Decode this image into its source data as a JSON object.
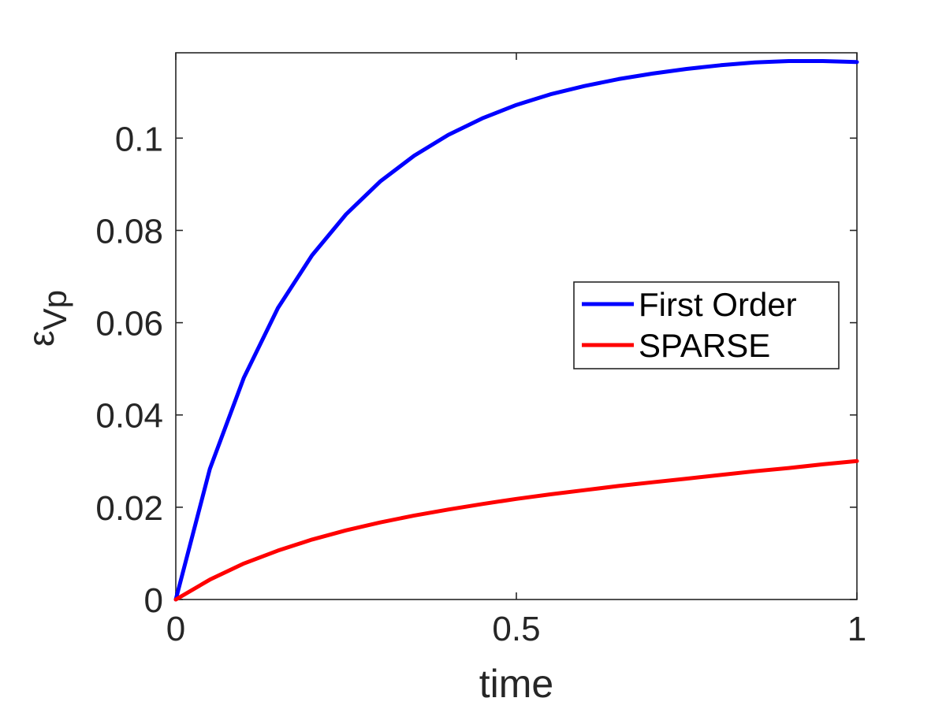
{
  "chart_data": {
    "type": "line",
    "xlabel": "time",
    "ylabel_main": "ε",
    "ylabel_sub": "Vp",
    "xlim": [
      0,
      1
    ],
    "ylim": [
      0,
      0.1185
    ],
    "x_ticks": [
      0,
      0.5,
      1
    ],
    "x_tick_labels": [
      "0",
      "0.5",
      "1"
    ],
    "y_ticks": [
      0,
      0.02,
      0.04,
      0.06,
      0.08,
      0.1
    ],
    "y_tick_labels": [
      "0",
      "0.02",
      "0.04",
      "0.06",
      "0.08",
      "0.1"
    ],
    "grid": false,
    "legend_position": "right",
    "series": [
      {
        "name": "First Order",
        "color": "#0000ff",
        "x": [
          0,
          0.05,
          0.1,
          0.15,
          0.2,
          0.25,
          0.3,
          0.35,
          0.4,
          0.45,
          0.5,
          0.55,
          0.6,
          0.65,
          0.7,
          0.75,
          0.8,
          0.85,
          0.9,
          0.95,
          1.0
        ],
        "y": [
          0,
          0.0283,
          0.0481,
          0.0632,
          0.0746,
          0.0835,
          0.0906,
          0.0962,
          0.1007,
          0.1043,
          0.1072,
          0.1095,
          0.1113,
          0.1128,
          0.114,
          0.115,
          0.1158,
          0.1164,
          0.1167,
          0.1167,
          0.1165
        ]
      },
      {
        "name": "SPARSE",
        "color": "#ff0000",
        "x": [
          0,
          0.05,
          0.1,
          0.15,
          0.2,
          0.25,
          0.3,
          0.35,
          0.4,
          0.45,
          0.5,
          0.55,
          0.6,
          0.65,
          0.7,
          0.75,
          0.8,
          0.85,
          0.9,
          0.95,
          1.0
        ],
        "y": [
          0,
          0.0043,
          0.0078,
          0.0106,
          0.013,
          0.015,
          0.0167,
          0.0182,
          0.0195,
          0.0207,
          0.0218,
          0.0228,
          0.0237,
          0.0246,
          0.0254,
          0.0262,
          0.027,
          0.0278,
          0.0285,
          0.0293,
          0.03
        ]
      }
    ]
  }
}
